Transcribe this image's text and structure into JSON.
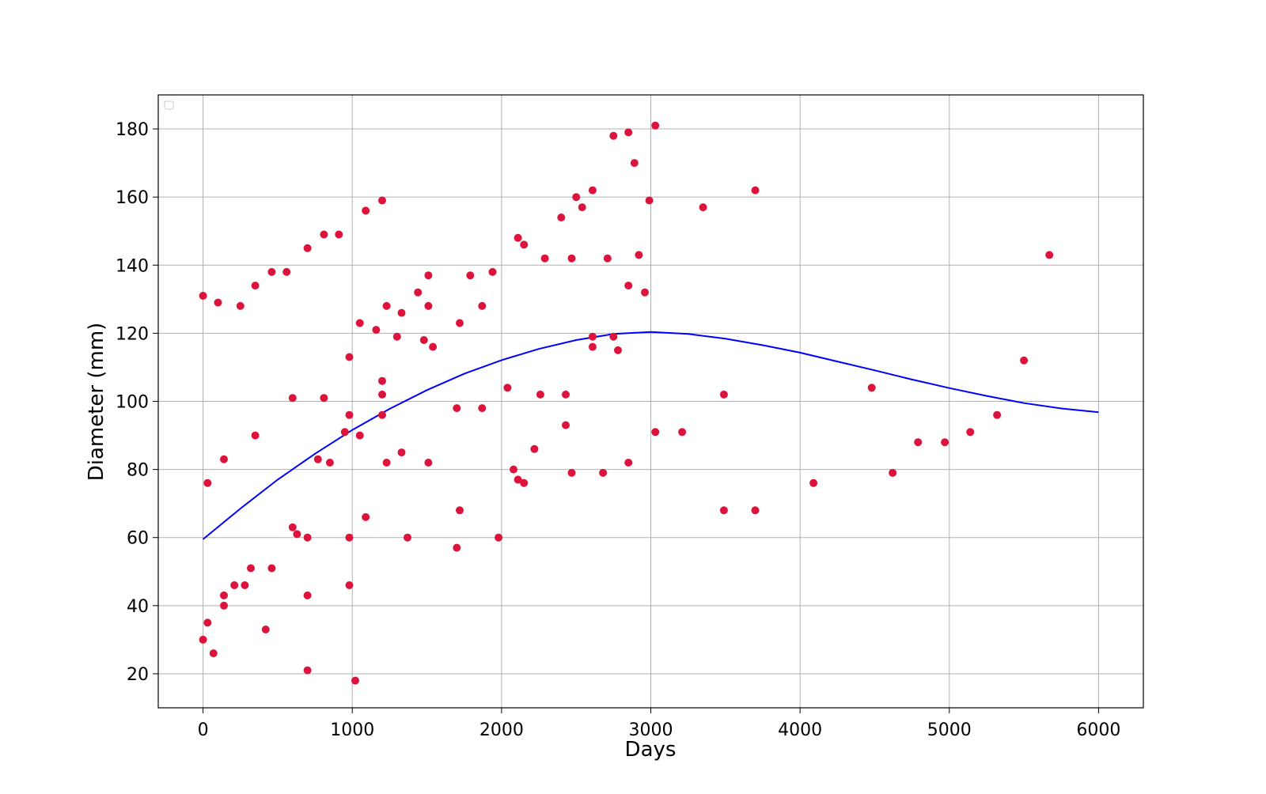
{
  "chart_data": {
    "type": "scatter",
    "title": "",
    "xlabel": "Days",
    "ylabel": "Diameter (mm)",
    "xlim": [
      -300,
      6300
    ],
    "ylim": [
      10,
      190
    ],
    "xticks": [
      0,
      1000,
      2000,
      3000,
      4000,
      5000,
      6000
    ],
    "yticks": [
      20,
      40,
      60,
      80,
      100,
      120,
      140,
      160,
      180
    ],
    "grid": true,
    "legend": {
      "placement": "top-left",
      "entries": []
    },
    "colors": {
      "points": "#dc143c",
      "fit_line": "#0000ff",
      "grid": "#b0b0b0",
      "frame": "#000000"
    },
    "series": [
      {
        "type": "scatter",
        "points": [
          [
            0,
            131
          ],
          [
            0,
            30
          ],
          [
            30,
            35
          ],
          [
            30,
            76
          ],
          [
            70,
            26
          ],
          [
            100,
            129
          ],
          [
            140,
            83
          ],
          [
            140,
            43
          ],
          [
            140,
            40
          ],
          [
            210,
            46
          ],
          [
            250,
            128
          ],
          [
            280,
            46
          ],
          [
            320,
            51
          ],
          [
            350,
            134
          ],
          [
            350,
            90
          ],
          [
            420,
            33
          ],
          [
            460,
            138
          ],
          [
            460,
            51
          ],
          [
            560,
            138
          ],
          [
            600,
            101
          ],
          [
            600,
            63
          ],
          [
            630,
            61
          ],
          [
            700,
            145
          ],
          [
            700,
            60
          ],
          [
            700,
            43
          ],
          [
            700,
            21
          ],
          [
            770,
            83
          ],
          [
            810,
            149
          ],
          [
            810,
            101
          ],
          [
            850,
            82
          ],
          [
            910,
            149
          ],
          [
            950,
            91
          ],
          [
            980,
            113
          ],
          [
            980,
            96
          ],
          [
            980,
            60
          ],
          [
            980,
            46
          ],
          [
            1020,
            18
          ],
          [
            1050,
            123
          ],
          [
            1050,
            90
          ],
          [
            1090,
            156
          ],
          [
            1090,
            66
          ],
          [
            1160,
            121
          ],
          [
            1200,
            159
          ],
          [
            1200,
            106
          ],
          [
            1200,
            102
          ],
          [
            1200,
            96
          ],
          [
            1230,
            128
          ],
          [
            1230,
            82
          ],
          [
            1300,
            119
          ],
          [
            1330,
            126
          ],
          [
            1330,
            85
          ],
          [
            1370,
            60
          ],
          [
            1440,
            132
          ],
          [
            1480,
            118
          ],
          [
            1510,
            137
          ],
          [
            1510,
            128
          ],
          [
            1510,
            82
          ],
          [
            1540,
            116
          ],
          [
            1700,
            98
          ],
          [
            1700,
            57
          ],
          [
            1720,
            123
          ],
          [
            1720,
            68
          ],
          [
            1790,
            137
          ],
          [
            1870,
            128
          ],
          [
            1870,
            98
          ],
          [
            1940,
            138
          ],
          [
            1980,
            60
          ],
          [
            2040,
            104
          ],
          [
            2080,
            80
          ],
          [
            2110,
            148
          ],
          [
            2110,
            77
          ],
          [
            2150,
            146
          ],
          [
            2150,
            76
          ],
          [
            2220,
            86
          ],
          [
            2260,
            102
          ],
          [
            2290,
            142
          ],
          [
            2400,
            154
          ],
          [
            2430,
            102
          ],
          [
            2430,
            93
          ],
          [
            2470,
            142
          ],
          [
            2470,
            79
          ],
          [
            2500,
            160
          ],
          [
            2540,
            157
          ],
          [
            2610,
            162
          ],
          [
            2610,
            119
          ],
          [
            2610,
            116
          ],
          [
            2680,
            79
          ],
          [
            2710,
            142
          ],
          [
            2750,
            178
          ],
          [
            2750,
            119
          ],
          [
            2780,
            115
          ],
          [
            2850,
            179
          ],
          [
            2850,
            134
          ],
          [
            2850,
            82
          ],
          [
            2890,
            170
          ],
          [
            2920,
            143
          ],
          [
            2960,
            132
          ],
          [
            2990,
            159
          ],
          [
            3030,
            181
          ],
          [
            3030,
            91
          ],
          [
            3210,
            91
          ],
          [
            3350,
            157
          ],
          [
            3490,
            102
          ],
          [
            3490,
            68
          ],
          [
            3700,
            162
          ],
          [
            3700,
            68
          ],
          [
            4090,
            76
          ],
          [
            4480,
            104
          ],
          [
            4620,
            79
          ],
          [
            4790,
            88
          ],
          [
            4970,
            88
          ],
          [
            5140,
            91
          ],
          [
            5320,
            96
          ],
          [
            5500,
            112
          ],
          [
            5670,
            143
          ]
        ]
      },
      {
        "type": "line",
        "points": [
          [
            0,
            59.5
          ],
          [
            250,
            68.5
          ],
          [
            500,
            77.0
          ],
          [
            750,
            84.6
          ],
          [
            1000,
            91.6
          ],
          [
            1250,
            97.8
          ],
          [
            1500,
            103.3
          ],
          [
            1750,
            108.1
          ],
          [
            2000,
            112.1
          ],
          [
            2250,
            115.4
          ],
          [
            2500,
            118.0
          ],
          [
            2750,
            119.8
          ],
          [
            3000,
            120.4
          ],
          [
            3250,
            119.8
          ],
          [
            3500,
            118.4
          ],
          [
            3750,
            116.5
          ],
          [
            4000,
            114.3
          ],
          [
            4250,
            111.7
          ],
          [
            4500,
            109.1
          ],
          [
            4750,
            106.4
          ],
          [
            5000,
            103.9
          ],
          [
            5250,
            101.6
          ],
          [
            5500,
            99.5
          ],
          [
            5750,
            97.9
          ],
          [
            6000,
            96.8
          ]
        ]
      }
    ]
  }
}
